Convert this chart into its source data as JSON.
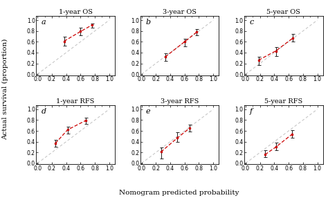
{
  "titles": [
    "1-year OS",
    "3-year OS",
    "5-year OS",
    "1-year RFS",
    "3-year RFS",
    "5-year RFS"
  ],
  "labels": [
    "a",
    "b",
    "c",
    "d",
    "e",
    "f"
  ],
  "plots": [
    {
      "x": [
        0.37,
        0.6,
        0.76
      ],
      "y": [
        0.61,
        0.79,
        0.91
      ],
      "yerr_lo": [
        0.08,
        0.07,
        0.05
      ],
      "yerr_hi": [
        0.08,
        0.07,
        0.03
      ]
    },
    {
      "x": [
        0.33,
        0.6,
        0.77
      ],
      "y": [
        0.32,
        0.6,
        0.78
      ],
      "yerr_lo": [
        0.07,
        0.09,
        0.06
      ],
      "yerr_hi": [
        0.07,
        0.06,
        0.06
      ]
    },
    {
      "x": [
        0.18,
        0.42,
        0.66
      ],
      "y": [
        0.26,
        0.43,
        0.67
      ],
      "yerr_lo": [
        0.09,
        0.09,
        0.07
      ],
      "yerr_hi": [
        0.06,
        0.07,
        0.07
      ]
    },
    {
      "x": [
        0.25,
        0.42,
        0.67
      ],
      "y": [
        0.37,
        0.62,
        0.79
      ],
      "yerr_lo": [
        0.07,
        0.07,
        0.06
      ],
      "yerr_hi": [
        0.07,
        0.06,
        0.05
      ]
    },
    {
      "x": [
        0.27,
        0.5,
        0.67
      ],
      "y": [
        0.21,
        0.47,
        0.65
      ],
      "yerr_lo": [
        0.12,
        0.07,
        0.06
      ],
      "yerr_hi": [
        0.08,
        0.1,
        0.07
      ]
    },
    {
      "x": [
        0.27,
        0.42,
        0.65
      ],
      "y": [
        0.16,
        0.3,
        0.54
      ],
      "yerr_lo": [
        0.05,
        0.06,
        0.07
      ],
      "yerr_hi": [
        0.08,
        0.08,
        0.07
      ]
    }
  ],
  "line_color": "#CC0000",
  "ref_line_color": "#C0C0C0",
  "error_bar_color": "#222222",
  "background_color": "#FFFFFF",
  "panel_color": "#FFFFFF",
  "xlabel": "Nomogram predicted probability",
  "ylabel": "Actual survival (proportion)",
  "tick_fontsize": 5.5,
  "label_fontsize": 7.5,
  "title_fontsize": 7,
  "subplot_label_fontsize": 8
}
